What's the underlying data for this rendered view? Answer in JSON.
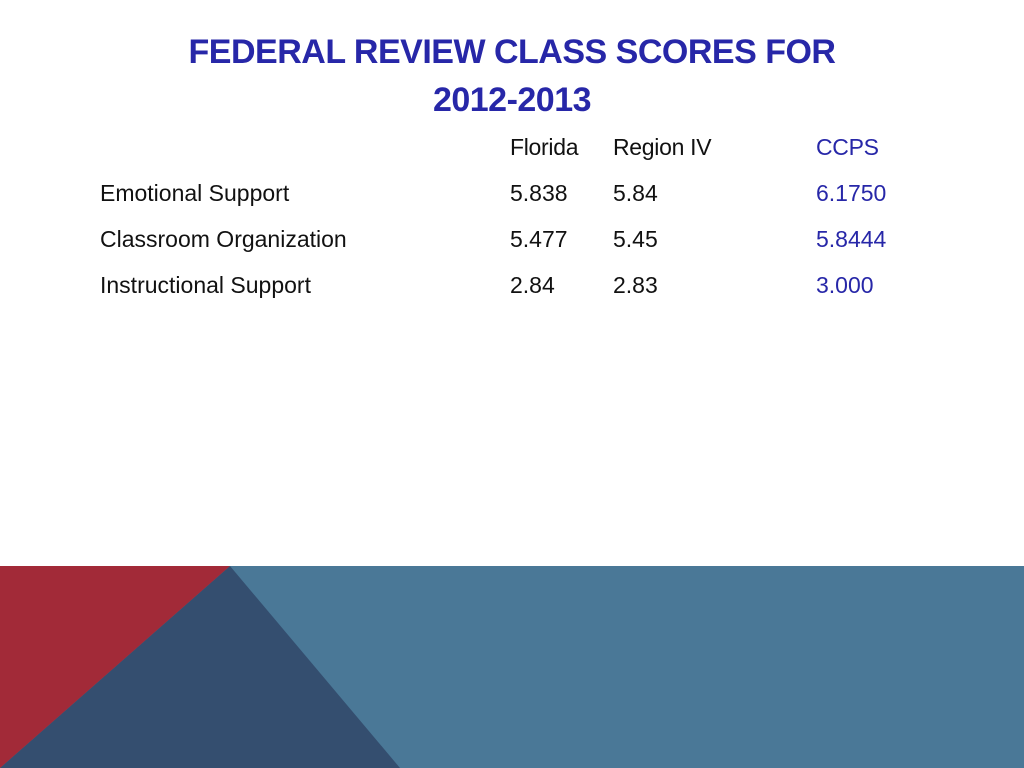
{
  "title": {
    "line1": "FEDERAL REVIEW CLASS SCORES FOR",
    "line2": "2012-2013"
  },
  "table": {
    "headers": [
      "",
      "Florida",
      "Region IV",
      "CCPS"
    ],
    "rows": [
      {
        "label": "Emotional Support",
        "florida": "5.838",
        "region": "5.84",
        "ccps": "6.1750"
      },
      {
        "label": "Classroom Organization",
        "florida": "5.477",
        "region": "5.45",
        "ccps": "5.8444"
      },
      {
        "label": "Instructional Support",
        "florida": "2.84",
        "region": "2.83",
        "ccps": "3.000"
      }
    ]
  },
  "colors": {
    "title": "#2727a8",
    "ccps_column": "#2727a8",
    "footer_blue": "#4a7897",
    "footer_navy": "#344e6f",
    "footer_red": "#a22a38"
  }
}
